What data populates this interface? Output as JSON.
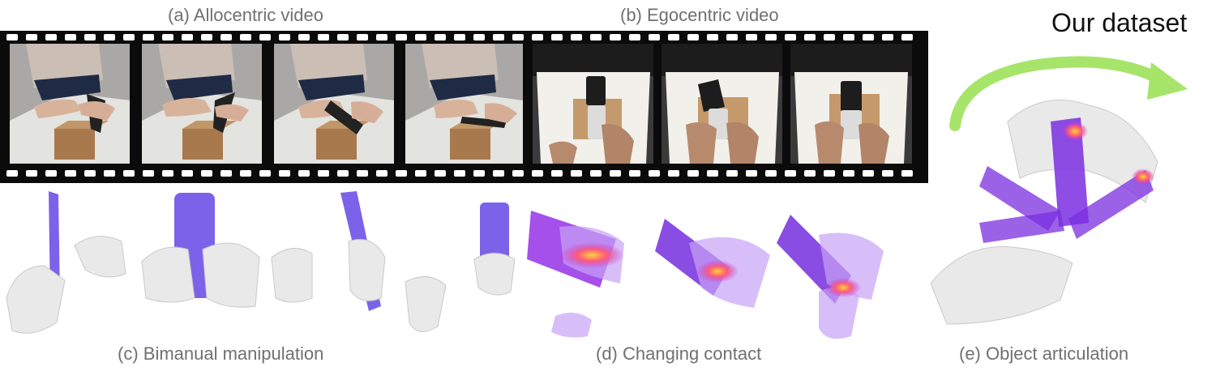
{
  "figure": {
    "captions": {
      "allocentric": "(a) Allocentric video",
      "egocentric": "(b) Egocentric video",
      "bimanual": "(c) Bimanual manipulation",
      "contact": "(d) Changing contact",
      "articulation": "(e) Object articulation"
    },
    "dataset_title": "Our dataset"
  },
  "colors": {
    "film": "#0b0b0b",
    "caption_gray": "#707070",
    "arrow_green": "#a7e46a",
    "object_purple": "#7a63e8",
    "contact_magenta": "#c23bd6",
    "contact_yellow": "#ffd23a",
    "hand_gray": "#e9e9e9"
  }
}
